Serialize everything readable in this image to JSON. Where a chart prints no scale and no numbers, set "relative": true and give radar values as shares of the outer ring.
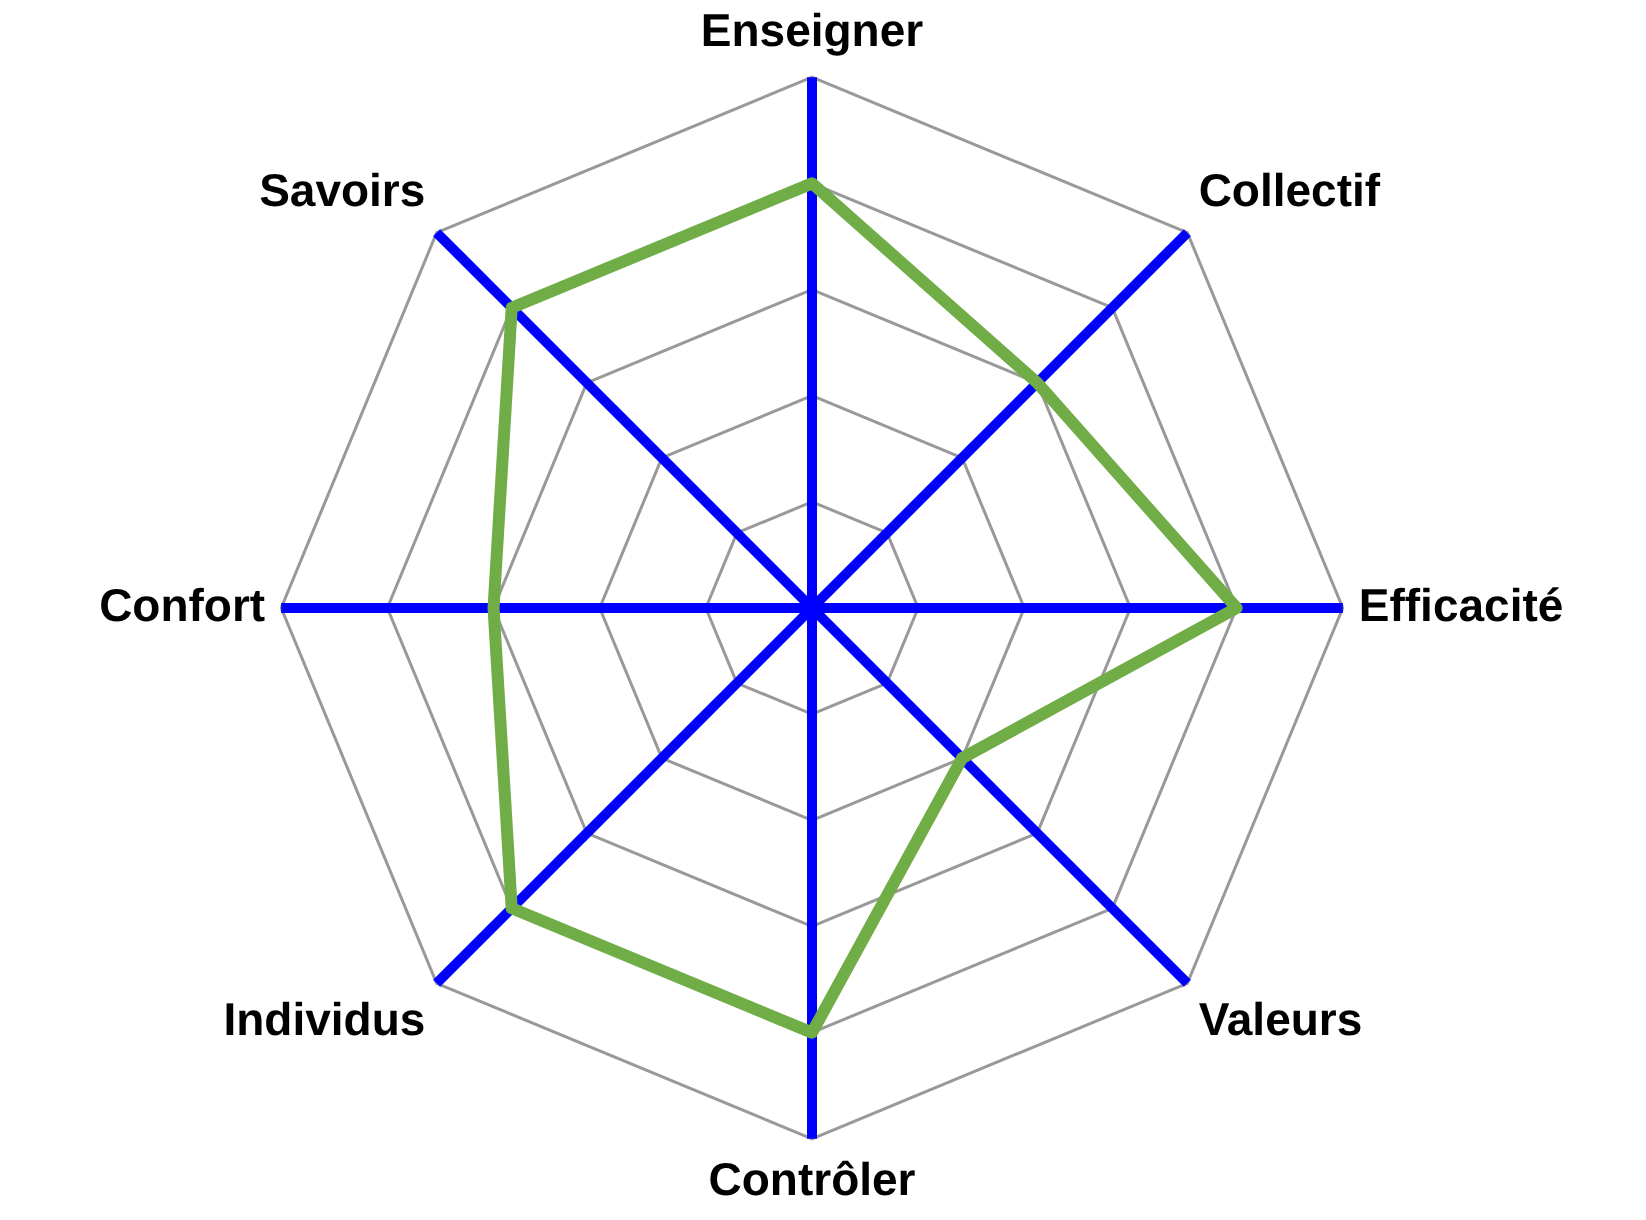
{
  "chart_data": {
    "type": "radar",
    "relative": true,
    "grid": true,
    "legend": false,
    "marker": "none",
    "line_style": "solid",
    "categories": [
      "Enseigner",
      "Collectif",
      "Efficacité",
      "Valeurs",
      "Contrôler",
      "Individus",
      "Confort",
      "Savoirs"
    ],
    "series": [
      {
        "color": "#70ad47",
        "values": [
          0.8,
          0.6,
          0.8,
          0.4,
          0.8,
          0.8,
          0.6,
          0.8
        ]
      }
    ]
  }
}
